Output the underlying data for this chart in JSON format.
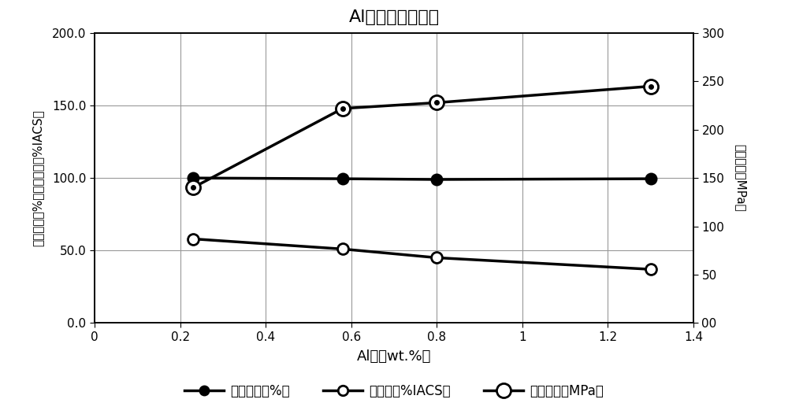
{
  "title": "Al量与特性的关系",
  "xlabel": "Al量（wt.%）",
  "ylabel_left": "相对密度（%）、电导率（%IACS）",
  "ylabel_right": "工程应力（MPa）",
  "x": [
    0.23,
    0.58,
    0.8,
    1.3
  ],
  "relative_density": [
    100.0,
    99.5,
    99.0,
    99.5
  ],
  "conductivity": [
    58.0,
    51.0,
    45.0,
    37.0
  ],
  "engineering_stress": [
    140.0,
    222.0,
    228.0,
    245.0
  ],
  "xlim": [
    0,
    1.4
  ],
  "ylim_left": [
    0.0,
    200.0
  ],
  "ylim_right": [
    0,
    300
  ],
  "xticks": [
    0,
    0.2,
    0.4,
    0.6,
    0.8,
    1.0,
    1.2,
    1.4
  ],
  "yticks_left": [
    0.0,
    50.0,
    100.0,
    150.0,
    200.0
  ],
  "yticks_right": [
    0,
    50,
    100,
    150,
    200,
    250,
    300
  ],
  "legend_label1": "相对密度（%）",
  "legend_label2": "电导率（%IACS）",
  "legend_label3": "工程应力（MPa）",
  "line_color": "#000000",
  "background_color": "#ffffff",
  "grid_color": "#999999"
}
